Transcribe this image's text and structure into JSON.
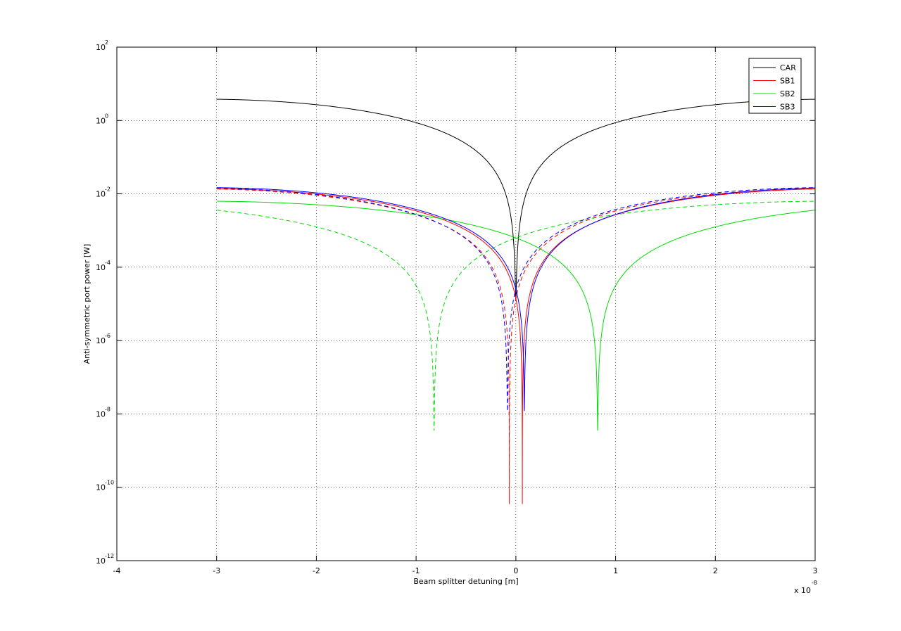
{
  "chart_data": {
    "type": "line",
    "title": "",
    "xlabel": "Beam splitter detuning [m]",
    "ylabel": "Anti-symmetric port power [W]",
    "x_scale": "linear",
    "x_multiplier_label": "x 10",
    "x_multiplier_exponent": "-8",
    "xlim": [
      -4,
      3
    ],
    "xticks": [
      "-4",
      "-3",
      "-2",
      "-1",
      "0",
      "1",
      "2",
      "3"
    ],
    "y_scale": "log",
    "ylim": [
      1e-12,
      100
    ],
    "yticks": [
      {
        "base": "10",
        "exp": "2"
      },
      {
        "base": "10",
        "exp": "0"
      },
      {
        "base": "10",
        "exp": "-2"
      },
      {
        "base": "10",
        "exp": "-4"
      },
      {
        "base": "10",
        "exp": "-6"
      },
      {
        "base": "10",
        "exp": "-8"
      },
      {
        "base": "10",
        "exp": "-10"
      },
      {
        "base": "10",
        "exp": "-12"
      }
    ],
    "grid": true,
    "legend_position": "top-right",
    "series": [
      {
        "name": "CAR",
        "color": "#000000",
        "dashed": false,
        "x_range": [
          -3,
          3
        ],
        "min_x": 0,
        "peak": 3.8,
        "floor": 1.2e-05
      },
      {
        "name": "SB1",
        "color": "#ff0000",
        "dashed": false,
        "x_range": [
          -3,
          3
        ],
        "min_x": 0.065,
        "peak": 0.0138,
        "floor": 3.5e-11
      },
      {
        "name": "SB1",
        "color": "#ff0000",
        "dashed": true,
        "x_range": [
          -3,
          3
        ],
        "min_x": -0.065,
        "peak": 0.0138,
        "floor": 3.5e-11
      },
      {
        "name": "SB2",
        "color": "#00dd00",
        "dashed": false,
        "x_range": [
          -3,
          3
        ],
        "min_x": 0.82,
        "peak": 0.0063,
        "floor": 3.5e-09
      },
      {
        "name": "SB2",
        "color": "#00dd00",
        "dashed": true,
        "x_range": [
          -3,
          3
        ],
        "min_x": -0.82,
        "peak": 0.0063,
        "floor": 3.5e-09
      },
      {
        "name": "SB3",
        "color": "#0000ff",
        "dashed": false,
        "x_range": [
          -3,
          3
        ],
        "min_x": 0.085,
        "peak": 0.0148,
        "floor": 1.2e-08
      },
      {
        "name": "SB3",
        "color": "#0000ff",
        "dashed": true,
        "x_range": [
          -3,
          3
        ],
        "min_x": -0.085,
        "peak": 0.0148,
        "floor": 1.2e-08
      }
    ],
    "legend": [
      {
        "label": "CAR",
        "color": "#000000"
      },
      {
        "label": "SB1",
        "color": "#ff0000"
      },
      {
        "label": "SB2",
        "color": "#00dd00"
      },
      {
        "label": "SB3",
        "color": "#0000ff"
      }
    ]
  }
}
